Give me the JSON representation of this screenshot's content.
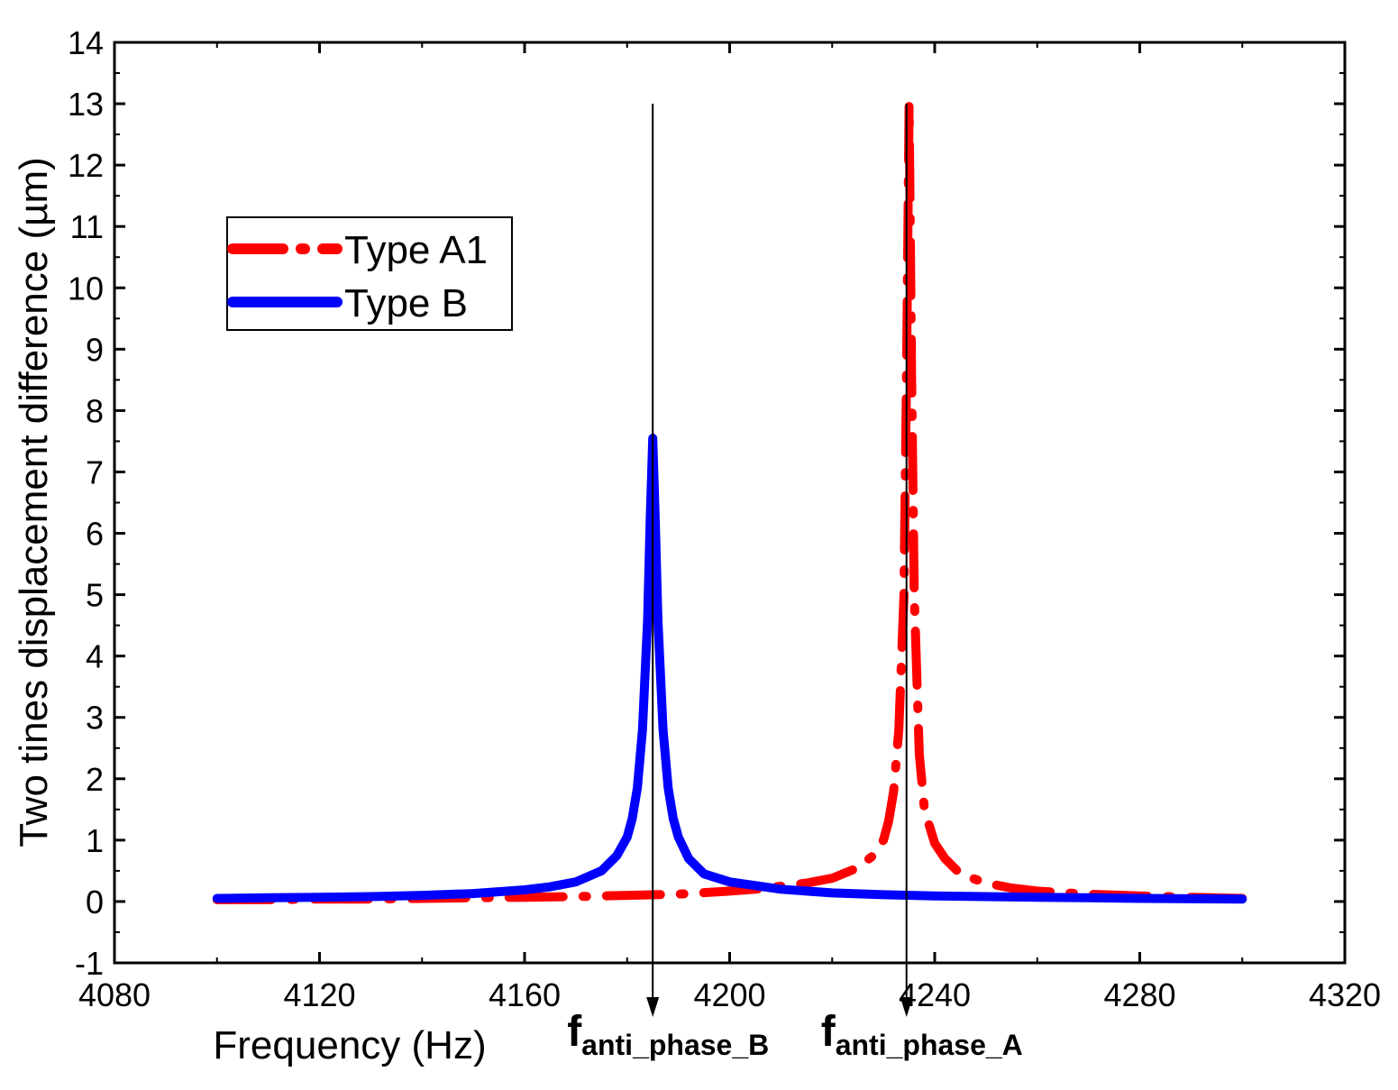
{
  "chart_data": {
    "type": "line",
    "title": "",
    "xlabel": "Frequency (Hz)",
    "ylabel": "Two tines displacement difference (µm)",
    "xlim": [
      4080,
      4320
    ],
    "ylim": [
      -1,
      14
    ],
    "xticks": [
      4080,
      4120,
      4160,
      4200,
      4240,
      4280,
      4320
    ],
    "yticks": [
      -1,
      0,
      1,
      2,
      3,
      4,
      5,
      6,
      7,
      8,
      9,
      10,
      11,
      12,
      13,
      14
    ],
    "grid": false,
    "legend_position": "upper-left",
    "series": [
      {
        "name": "Type A1",
        "color": "#ff0000",
        "style": "dash-dot",
        "x": [
          4100,
          4110,
          4120,
          4130,
          4140,
          4150,
          4160,
          4170,
          4180,
          4190,
          4200,
          4205,
          4210,
          4215,
          4220,
          4225,
          4228,
          4230,
          4231,
          4232,
          4233,
          4234,
          4234.5,
          4235,
          4235.5,
          4236,
          4237,
          4238,
          4240,
          4242,
          4245,
          4250,
          4255,
          4260,
          4270,
          4280,
          4290,
          4300
        ],
        "y": [
          0.03,
          0.03,
          0.04,
          0.04,
          0.05,
          0.06,
          0.07,
          0.08,
          0.1,
          0.12,
          0.17,
          0.2,
          0.25,
          0.3,
          0.38,
          0.55,
          0.75,
          1.0,
          1.3,
          1.8,
          2.8,
          5.0,
          8.5,
          13.0,
          8.5,
          5.0,
          2.4,
          1.5,
          0.95,
          0.7,
          0.45,
          0.3,
          0.22,
          0.17,
          0.12,
          0.09,
          0.07,
          0.05
        ]
      },
      {
        "name": "Type B",
        "color": "#0000ff",
        "style": "solid",
        "x": [
          4100,
          4110,
          4120,
          4130,
          4140,
          4150,
          4160,
          4165,
          4170,
          4175,
          4178,
          4180,
          4181,
          4182,
          4183,
          4184,
          4184.5,
          4185,
          4185.5,
          4186,
          4187,
          4188,
          4189,
          4190,
          4192,
          4195,
          4200,
          4210,
          4220,
          4230,
          4240,
          4250,
          4260,
          4270,
          4280,
          4290,
          4300
        ],
        "y": [
          0.05,
          0.06,
          0.07,
          0.08,
          0.1,
          0.13,
          0.19,
          0.24,
          0.32,
          0.5,
          0.75,
          1.05,
          1.35,
          1.85,
          2.8,
          4.6,
          6.2,
          7.55,
          6.2,
          4.6,
          2.8,
          1.85,
          1.35,
          1.05,
          0.7,
          0.45,
          0.32,
          0.2,
          0.14,
          0.11,
          0.09,
          0.08,
          0.07,
          0.06,
          0.05,
          0.045,
          0.04
        ]
      }
    ],
    "annotations": [
      {
        "x": 4185,
        "main": "f",
        "sub": "anti_phase_B"
      },
      {
        "x": 4234.5,
        "main": "f",
        "sub": "anti_phase_A"
      }
    ]
  }
}
